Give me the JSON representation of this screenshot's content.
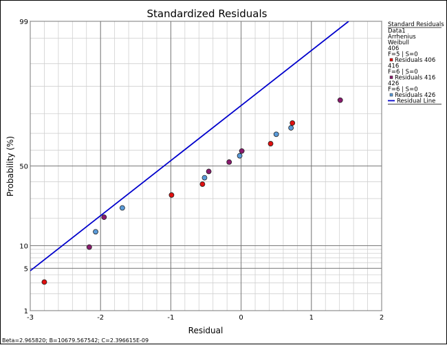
{
  "chart_data": {
    "type": "scatter",
    "title": "Standardized Residuals",
    "xlabel": "Residual",
    "ylabel": "Probability (%)",
    "x_scale": "linear",
    "y_scale": "normal-probability",
    "xlim": [
      -3,
      2
    ],
    "ylim": [
      1,
      99
    ],
    "x_ticks": [
      -3,
      -2,
      -1,
      0,
      1,
      2
    ],
    "x_tick_labels": [
      "-3",
      "-2",
      "-1",
      "0",
      "1",
      "2"
    ],
    "y_ticks": [
      1,
      5,
      10,
      50,
      99
    ],
    "y_tick_labels": [
      "1",
      "5",
      "10",
      "50",
      "99"
    ],
    "grid": true,
    "legend_position": "right",
    "legend": {
      "title": "Standard Residuals",
      "header_lines": [
        "Data1",
        "Arrhenius",
        "Weibull"
      ],
      "groups": [
        {
          "stress": "406",
          "info": "F=5 | S=0",
          "label": "Residuals 406",
          "color": "#e01010"
        },
        {
          "stress": "416",
          "info": "F=6 | S=0",
          "label": "Residuals 416",
          "color": "#8a1a6e"
        },
        {
          "stress": "426",
          "info": "F=6 | S=0",
          "label": "Residuals 426",
          "color": "#5b9bd9"
        }
      ],
      "line_label": "Residual Line",
      "line_color": "#0000cc"
    },
    "series": [
      {
        "name": "Residuals 406",
        "color": "#e01010",
        "points": [
          {
            "x": -2.8,
            "y": 3.1
          },
          {
            "x": -0.99,
            "y": 32.0
          },
          {
            "x": -0.55,
            "y": 38.5
          },
          {
            "x": 0.42,
            "y": 64.0
          },
          {
            "x": 0.73,
            "y": 75.5
          }
        ]
      },
      {
        "name": "Residuals 416",
        "color": "#8a1a6e",
        "points": [
          {
            "x": -2.16,
            "y": 9.6
          },
          {
            "x": -1.95,
            "y": 20.5
          },
          {
            "x": -0.46,
            "y": 46.5
          },
          {
            "x": -0.17,
            "y": 52.5
          },
          {
            "x": 0.01,
            "y": 59.5
          },
          {
            "x": 1.41,
            "y": 85.5
          }
        ]
      },
      {
        "name": "Residuals 426",
        "color": "#5b9bd9",
        "points": [
          {
            "x": -2.07,
            "y": 14.5
          },
          {
            "x": -1.69,
            "y": 25.0
          },
          {
            "x": -0.52,
            "y": 42.5
          },
          {
            "x": -0.02,
            "y": 56.5
          },
          {
            "x": 0.5,
            "y": 69.5
          },
          {
            "x": 0.71,
            "y": 73.0
          }
        ]
      },
      {
        "name": "Residual Line",
        "type": "line",
        "color": "#0000cc",
        "points": [
          {
            "x": -3.0,
            "y": 4.6
          },
          {
            "x": 1.53,
            "y": 99.0
          }
        ]
      }
    ],
    "footer": "Beta=2.965820; B=10679.567542; C=2.396615E-09"
  }
}
